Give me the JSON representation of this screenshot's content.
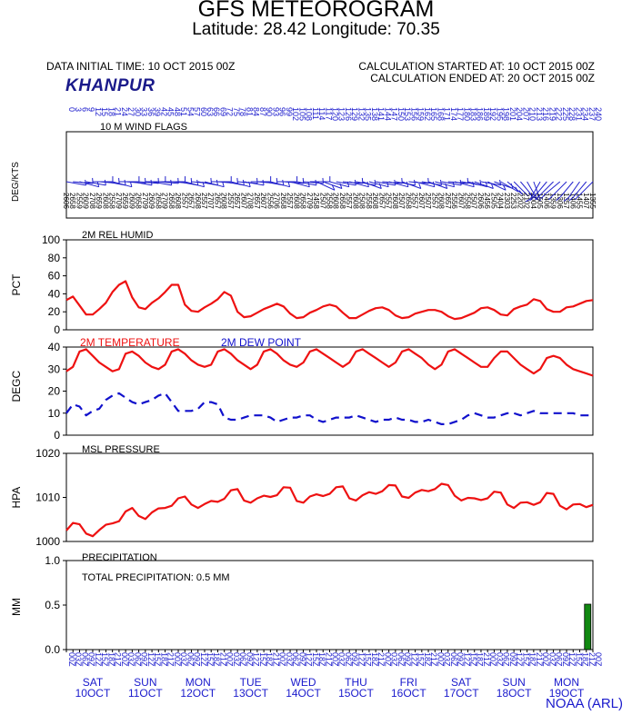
{
  "header": {
    "title": "GFS METEOROGRAM",
    "subtitle": "Latitude: 28.42 Longitude:  70.35",
    "data_initial_time": "DATA INITIAL TIME: 10 OCT 2015 00Z",
    "calc_started": "CALCULATION STARTED AT: 10 OCT 2015 00Z",
    "calc_ended": "CALCULATION ENDED AT: 20 OCT 2015 00Z",
    "station": "KHANPUR"
  },
  "footer": {
    "credit": "NOAA (ARL)"
  },
  "colors": {
    "temperature": "#ee1111",
    "dewpoint": "#1111cc",
    "pressure": "#ee1111",
    "humidity": "#ee1111",
    "precip": "#118811",
    "wind": "#2222cc",
    "labels_blue": "#1a1acc"
  },
  "days": [
    {
      "name": "SAT",
      "date": "10OCT"
    },
    {
      "name": "SUN",
      "date": "11OCT"
    },
    {
      "name": "MON",
      "date": "12OCT"
    },
    {
      "name": "TUE",
      "date": "13OCT"
    },
    {
      "name": "WED",
      "date": "14OCT"
    },
    {
      "name": "THU",
      "date": "15OCT"
    },
    {
      "name": "FRI",
      "date": "16OCT"
    },
    {
      "name": "SAT",
      "date": "17OCT"
    },
    {
      "name": "SUN",
      "date": "18OCT"
    },
    {
      "name": "MON",
      "date": "19OCT"
    }
  ],
  "chart_data": [
    {
      "type": "wind_barbs",
      "title": "10 M  WIND FLAGS",
      "ylabel": "DEG/KTS",
      "forecast_hours": [
        0,
        3,
        6,
        9,
        12,
        15,
        18,
        21,
        24,
        27,
        30,
        33,
        36,
        39,
        42,
        45,
        48,
        51,
        54,
        57,
        60,
        63,
        66,
        69,
        72,
        75,
        78,
        81,
        84,
        87,
        90,
        93,
        96,
        99,
        102,
        105,
        108,
        111,
        114,
        117,
        120,
        123,
        126,
        129,
        132,
        135,
        138,
        141,
        144,
        147,
        150,
        153,
        156,
        159,
        162,
        165,
        168,
        171,
        174,
        177,
        180,
        183,
        186,
        189,
        192,
        195,
        198,
        201,
        204,
        207,
        210,
        213,
        216,
        219,
        222,
        225,
        228,
        231,
        234,
        237,
        240
      ],
      "direction_deg": [
        260,
        265,
        255,
        260,
        270,
        265,
        260,
        255,
        270,
        265,
        260,
        265,
        270,
        260,
        265,
        270,
        265,
        260,
        255,
        265,
        260,
        255,
        270,
        265,
        260,
        255,
        265,
        260,
        270,
        265,
        260,
        255,
        270,
        265,
        255,
        260,
        265,
        270,
        245,
        250,
        255,
        260,
        265,
        255,
        260,
        250,
        255,
        260,
        265,
        255,
        260,
        250,
        265,
        255,
        260,
        250,
        255,
        260,
        265,
        255,
        260,
        255,
        250,
        260,
        245,
        250,
        240,
        230,
        225,
        220,
        210,
        200,
        150,
        140,
        135,
        130,
        135,
        140,
        145,
        140,
        135
      ],
      "speed_kts": [
        6,
        8,
        9,
        9,
        8,
        9,
        8,
        8,
        9,
        9,
        9,
        8,
        9,
        9,
        8,
        9,
        8,
        8,
        7,
        7,
        8,
        7,
        7,
        7,
        8,
        7,
        7,
        7,
        8,
        7,
        7,
        6,
        6,
        8,
        7,
        8,
        8,
        9,
        8,
        7,
        8,
        8,
        8,
        7,
        8,
        8,
        8,
        8,
        7,
        7,
        8,
        7,
        8,
        7,
        7,
        7,
        7,
        8,
        7,
        6,
        7,
        8,
        7,
        6,
        6,
        5,
        4,
        3,
        3,
        2,
        2,
        4,
        5,
        6,
        9,
        6,
        7,
        6,
        5,
        7,
        5
      ]
    },
    {
      "type": "line",
      "title": "2M REL HUMID",
      "ylabel": "PCT",
      "ylim": [
        0,
        100
      ],
      "yticks": [
        0,
        20,
        40,
        60,
        80,
        100
      ],
      "x_hours": [
        0,
        3,
        6,
        9,
        12,
        15,
        18,
        21,
        24,
        27,
        30,
        33,
        36,
        39,
        42,
        45,
        48,
        51,
        54,
        57,
        60,
        63,
        66,
        69,
        72,
        75,
        78,
        81,
        84,
        87,
        90,
        93,
        96,
        99,
        102,
        105,
        108,
        111,
        114,
        117,
        120,
        123,
        126,
        129,
        132,
        135,
        138,
        141,
        144,
        147,
        150,
        153,
        156,
        159,
        162,
        165,
        168,
        171,
        174,
        177,
        180,
        183,
        186,
        189,
        192,
        195,
        198,
        201,
        204,
        207,
        210,
        213,
        216,
        219,
        222,
        225,
        228,
        231,
        234,
        237,
        240
      ],
      "series": [
        {
          "values": [
            33,
            37,
            27,
            17,
            17,
            23,
            30,
            42,
            50,
            54,
            36,
            25,
            23,
            30,
            35,
            42,
            50,
            50,
            28,
            21,
            20,
            25,
            29,
            34,
            42,
            38,
            20,
            14,
            15,
            19,
            23,
            26,
            29,
            26,
            18,
            13,
            14,
            19,
            22,
            26,
            28,
            26,
            19,
            13,
            13,
            17,
            21,
            24,
            25,
            22,
            16,
            13,
            14,
            18,
            20,
            22,
            22,
            20,
            15,
            12,
            13,
            16,
            19,
            24,
            25,
            22,
            17,
            16,
            23,
            26,
            28,
            34,
            32,
            23,
            20,
            20,
            25,
            26,
            29,
            32,
            33
          ]
        }
      ]
    },
    {
      "type": "line",
      "title": "",
      "ylabel": "DEGC",
      "ylim": [
        0,
        40
      ],
      "yticks": [
        0,
        10,
        20,
        30,
        40
      ],
      "x_hours": [
        0,
        3,
        6,
        9,
        12,
        15,
        18,
        21,
        24,
        27,
        30,
        33,
        36,
        39,
        42,
        45,
        48,
        51,
        54,
        57,
        60,
        63,
        66,
        69,
        72,
        75,
        78,
        81,
        84,
        87,
        90,
        93,
        96,
        99,
        102,
        105,
        108,
        111,
        114,
        117,
        120,
        123,
        126,
        129,
        132,
        135,
        138,
        141,
        144,
        147,
        150,
        153,
        156,
        159,
        162,
        165,
        168,
        171,
        174,
        177,
        180,
        183,
        186,
        189,
        192,
        195,
        198,
        201,
        204,
        207,
        210,
        213,
        216,
        219,
        222,
        225,
        228,
        231,
        234,
        237,
        240
      ],
      "series": [
        {
          "name": "2M TEMPERATURE",
          "style": "solid",
          "values": [
            29,
            31,
            38,
            39,
            36,
            33,
            31,
            29,
            30,
            37,
            38,
            36,
            33,
            31,
            30,
            32,
            38,
            39,
            37,
            34,
            32,
            31,
            32,
            38,
            39,
            37,
            34,
            32,
            30,
            32,
            38,
            39,
            37,
            34,
            32,
            31,
            33,
            38,
            39,
            37,
            35,
            33,
            31,
            33,
            38,
            39,
            37,
            35,
            33,
            31,
            33,
            38,
            39,
            37,
            35,
            32,
            30,
            32,
            38,
            39,
            37,
            35,
            33,
            31,
            31,
            35,
            38,
            38,
            35,
            32,
            30,
            28,
            30,
            35,
            36,
            35,
            32,
            30,
            29,
            28,
            27
          ]
        },
        {
          "name": "2M   DEW POINT",
          "style": "dashed",
          "values": [
            10,
            14,
            13,
            9,
            11,
            12,
            16,
            18,
            19,
            17,
            15,
            14,
            15,
            16,
            18,
            19,
            15,
            11,
            11,
            11,
            12,
            15,
            15,
            14,
            8,
            7,
            7,
            8,
            9,
            9,
            9,
            8,
            6,
            7,
            8,
            8,
            9,
            9,
            7,
            6,
            7,
            8,
            8,
            8,
            9,
            8,
            7,
            6,
            7,
            7,
            8,
            7,
            7,
            6,
            6,
            7,
            6,
            5,
            5,
            6,
            7,
            9,
            10,
            9,
            8,
            8,
            9,
            10,
            10,
            9,
            10,
            11,
            10,
            10,
            10,
            10,
            10,
            10,
            9,
            9,
            9
          ]
        }
      ]
    },
    {
      "type": "line",
      "title": "MSL PRESSURE",
      "ylabel": "HPA",
      "ylim": [
        1000,
        1020
      ],
      "yticks": [
        1000,
        1010,
        1020
      ],
      "x_hours": [
        0,
        3,
        6,
        9,
        12,
        15,
        18,
        21,
        24,
        27,
        30,
        33,
        36,
        39,
        42,
        45,
        48,
        51,
        54,
        57,
        60,
        63,
        66,
        69,
        72,
        75,
        78,
        81,
        84,
        87,
        90,
        93,
        96,
        99,
        102,
        105,
        108,
        111,
        114,
        117,
        120,
        123,
        126,
        129,
        132,
        135,
        138,
        141,
        144,
        147,
        150,
        153,
        156,
        159,
        162,
        165,
        168,
        171,
        174,
        177,
        180,
        183,
        186,
        189,
        192,
        195,
        198,
        201,
        204,
        207,
        210,
        213,
        216,
        219,
        222,
        225,
        228,
        231,
        234,
        237,
        240
      ],
      "series": [
        {
          "values": [
            1002.5,
            1004.2,
            1003.9,
            1001.8,
            1001.2,
            1002.6,
            1003.8,
            1004.1,
            1004.6,
            1006.8,
            1007.6,
            1005.8,
            1005.1,
            1006.6,
            1007.5,
            1007.6,
            1008.1,
            1009.8,
            1010.2,
            1008.4,
            1007.6,
            1008.5,
            1009.2,
            1009.0,
            1009.7,
            1011.6,
            1011.9,
            1009.3,
            1008.8,
            1009.8,
            1010.4,
            1010.1,
            1010.5,
            1012.3,
            1012.2,
            1009.2,
            1008.8,
            1010.2,
            1010.7,
            1010.3,
            1010.8,
            1012.3,
            1012.5,
            1009.8,
            1009.3,
            1010.5,
            1011.2,
            1010.8,
            1011.4,
            1012.8,
            1012.7,
            1010.2,
            1009.9,
            1011.1,
            1011.7,
            1011.4,
            1011.9,
            1013.1,
            1012.8,
            1010.4,
            1009.3,
            1009.9,
            1009.8,
            1009.4,
            1009.8,
            1011.3,
            1011.1,
            1008.4,
            1007.6,
            1008.8,
            1008.9,
            1008.3,
            1008.9,
            1011.0,
            1010.8,
            1008.1,
            1007.3,
            1008.4,
            1008.5,
            1007.8,
            1008.3
          ]
        }
      ]
    },
    {
      "type": "bar",
      "title": "PRECIPITATION",
      "ylabel": "MM",
      "ylim": [
        0.0,
        1.0
      ],
      "yticks": [
        "0.0",
        "0.5",
        "1.0"
      ],
      "annotation": "TOTAL PRECIPITATION:   0.5 MM",
      "bars": [
        {
          "start_hour": 237,
          "end_hour": 240,
          "value": 0.51
        }
      ]
    }
  ]
}
